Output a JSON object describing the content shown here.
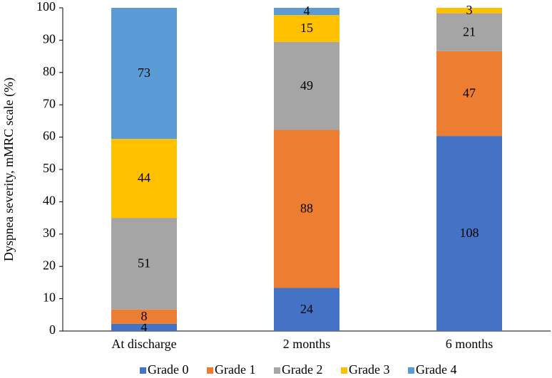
{
  "chart_data": {
    "type": "stacked_percent_bar",
    "y_label": "Dyspnea severity, mMRC scale (%)",
    "categories": [
      "At discharge",
      "2 months",
      "6 months"
    ],
    "series": [
      {
        "name": "Grade 0",
        "color": "#4472c4",
        "values": [
          4,
          24,
          108
        ]
      },
      {
        "name": "Grade 1",
        "color": "#ed7d31",
        "values": [
          8,
          88,
          47
        ]
      },
      {
        "name": "Grade 2",
        "color": "#a5a5a5",
        "values": [
          51,
          49,
          21
        ]
      },
      {
        "name": "Grade 3",
        "color": "#ffc000",
        "values": [
          44,
          15,
          3
        ]
      },
      {
        "name": "Grade 4",
        "color": "#5b9bd5",
        "values": [
          73,
          4,
          null
        ]
      }
    ],
    "ylim": [
      0,
      100
    ],
    "yticks": [
      0,
      10,
      20,
      30,
      40,
      50,
      60,
      70,
      80,
      90,
      100
    ],
    "legend": "bottom"
  }
}
